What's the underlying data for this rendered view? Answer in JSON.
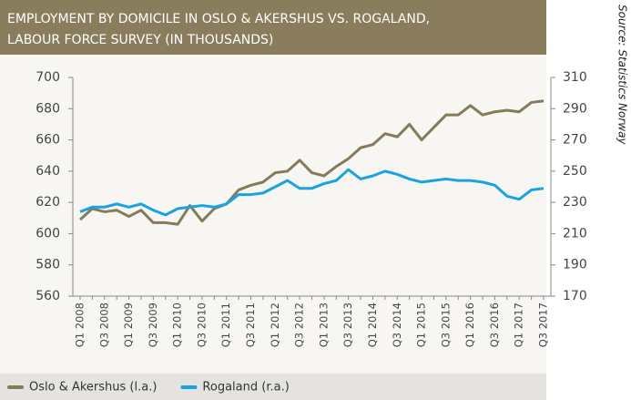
{
  "chart_data": {
    "type": "line",
    "title": [
      "EMPLOYMENT BY DOMICILE IN OSLO & AKERSHUS VS. ROGALAND,",
      "LABOUR FORCE SURVEY (IN THOUSANDS)"
    ],
    "source": "Source: Statistics Norway",
    "categories": [
      "Q1 2008",
      null,
      "Q3 2008",
      null,
      "Q1 2009",
      null,
      "Q3 2009",
      null,
      "Q1 2010",
      null,
      "Q3 2010",
      null,
      "Q1 2011",
      null,
      "Q3 2011",
      null,
      "Q1 2012",
      null,
      "Q3 2012",
      null,
      "Q1 2013",
      null,
      "Q3 2013",
      null,
      "Q1 2014",
      null,
      "Q3 2014",
      null,
      "Q1 2015",
      null,
      "Q3 2015",
      null,
      "Q1 2016",
      null,
      "Q3 2016",
      null,
      "Q1 2017",
      null,
      "Q3 2017"
    ],
    "series": [
      {
        "name": "Oslo & Akershus (l.a.)",
        "color": "#857a5a",
        "axis": "y",
        "values": [
          609,
          616,
          614,
          615,
          611,
          615,
          607,
          607,
          606,
          618,
          608,
          616,
          619,
          628,
          631,
          633,
          639,
          640,
          647,
          639,
          637,
          643,
          648,
          655,
          657,
          664,
          662,
          670,
          660,
          668,
          676,
          676,
          682,
          676,
          678,
          679,
          678,
          684,
          685
        ]
      },
      {
        "name": "Rogaland (r.a.)",
        "color": "#1aa3e0",
        "axis": "y2",
        "values": [
          224,
          227,
          227,
          229,
          227,
          229,
          225,
          222,
          226,
          227,
          228,
          227,
          229,
          235,
          235,
          236,
          240,
          244,
          239,
          239,
          242,
          244,
          251,
          245,
          247,
          250,
          248,
          245,
          243,
          244,
          245,
          244,
          244,
          243,
          241,
          234,
          232,
          238,
          239
        ]
      }
    ],
    "ylim": [
      560,
      700
    ],
    "yticks": [
      560,
      580,
      600,
      620,
      640,
      660,
      680,
      700
    ],
    "y2lim": [
      170,
      310
    ],
    "y2ticks": [
      170,
      190,
      210,
      230,
      250,
      270,
      290,
      310
    ],
    "grid": false,
    "legend": "bottom"
  }
}
